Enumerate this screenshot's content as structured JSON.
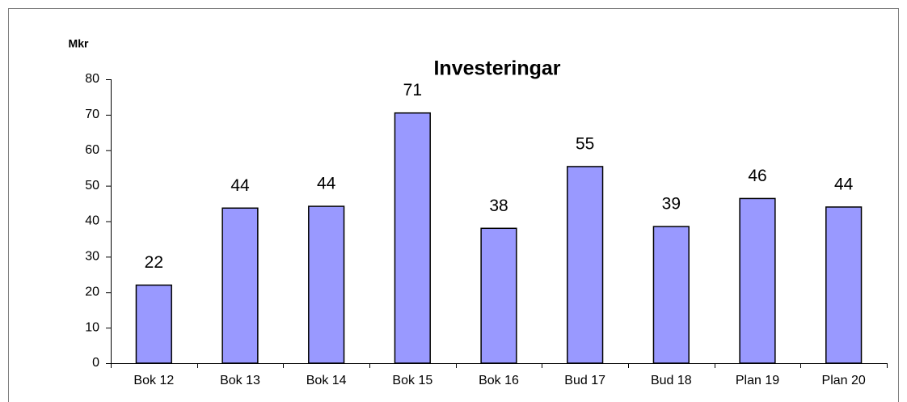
{
  "chart_data": {
    "type": "bar",
    "title": "Investeringar",
    "y_label": "Mkr",
    "categories": [
      "Bok 12",
      "Bok 13",
      "Bok 14",
      "Bok 15",
      "Bok 16",
      "Bud 17",
      "Bud 18",
      "Plan 19",
      "Plan 20"
    ],
    "values": [
      22,
      43.7,
      44.2,
      70.5,
      38,
      55.4,
      38.5,
      46.4,
      44
    ],
    "value_labels": [
      "22",
      "44",
      "44",
      "71",
      "38",
      "55",
      "39",
      "46",
      "44"
    ],
    "color": "#9999ff",
    "ylim": [
      0,
      80
    ],
    "yticks": [
      0,
      10,
      20,
      30,
      40,
      50,
      60,
      70,
      80
    ],
    "grid": false
  }
}
